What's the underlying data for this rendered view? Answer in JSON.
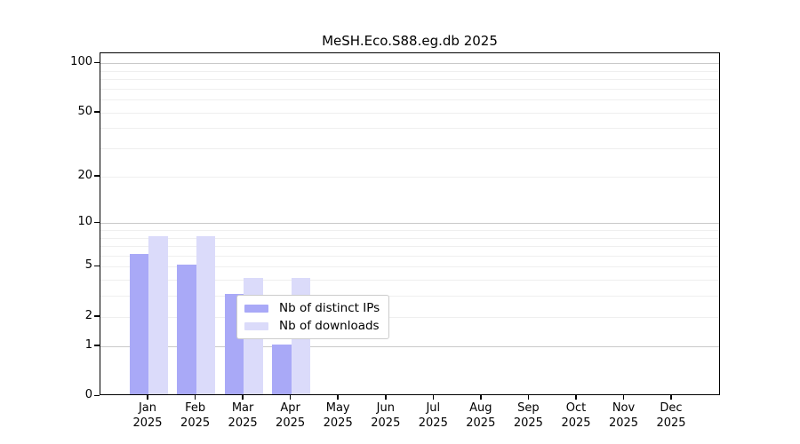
{
  "chart_data": {
    "type": "bar",
    "title": "MeSH.Eco.S88.eg.db 2025",
    "categories": [
      "Jan",
      "Feb",
      "Mar",
      "Apr",
      "May",
      "Jun",
      "Jul",
      "Aug",
      "Sep",
      "Oct",
      "Nov",
      "Dec"
    ],
    "x_tick_second_line": "2025",
    "series": [
      {
        "name": "Nb of distinct IPs",
        "color": "#a9a9f7",
        "values": [
          6,
          5,
          3,
          1,
          0,
          0,
          0,
          0,
          0,
          0,
          0,
          0
        ]
      },
      {
        "name": "Nb of downloads",
        "color": "#dbdbfa",
        "values": [
          8,
          8,
          4,
          4,
          0,
          0,
          0,
          0,
          0,
          0,
          0,
          0
        ]
      }
    ],
    "yscale": "log1p",
    "ylim": [
      0,
      115
    ],
    "yticks": [
      0,
      1,
      2,
      5,
      10,
      20,
      50,
      100
    ],
    "major_gridlines": [
      1,
      10,
      100
    ],
    "minor_gridlines": [
      2,
      3,
      4,
      5,
      6,
      7,
      8,
      9,
      20,
      30,
      40,
      50,
      60,
      70,
      80,
      90
    ],
    "grid": true,
    "legend_position": "bottom-center-inside"
  },
  "colors": {
    "bar_distinct_ips": "#a9a9f7",
    "bar_downloads": "#dbdbfa",
    "grid_major": "#c9c9c9",
    "grid_minor": "#efefef",
    "axis": "#000000",
    "legend_border": "#cccccc",
    "background": "#ffffff"
  }
}
